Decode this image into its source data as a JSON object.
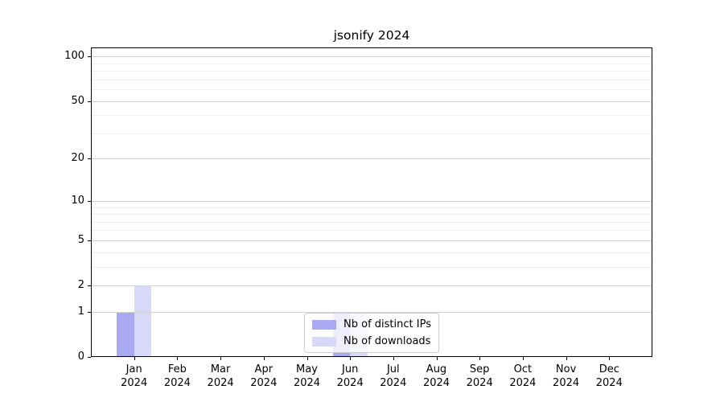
{
  "chart_data": {
    "type": "bar",
    "title": "jsonify 2024",
    "categories": [
      "Jan",
      "Feb",
      "Mar",
      "Apr",
      "May",
      "Jun",
      "Jul",
      "Aug",
      "Sep",
      "Oct",
      "Nov",
      "Dec"
    ],
    "category_year": "2024",
    "series": [
      {
        "name": "Nb of distinct IPs",
        "color": "#a9a9f2",
        "values": [
          1,
          0,
          0,
          0,
          0,
          1,
          0,
          0,
          0,
          0,
          0,
          0
        ]
      },
      {
        "name": "Nb of downloads",
        "color": "#d8d8f8",
        "values": [
          2,
          0,
          0,
          0,
          0,
          1,
          0,
          0,
          0,
          0,
          0,
          0
        ]
      }
    ],
    "y_axis": {
      "scale": "log1p",
      "major_ticks": [
        0,
        1,
        2,
        5,
        10,
        20,
        50,
        100
      ],
      "minor_ticks": [
        3,
        4,
        6,
        7,
        8,
        9,
        30,
        40,
        60,
        70,
        80,
        90
      ],
      "max": 115
    },
    "xlabel": "",
    "ylabel": "",
    "grid": true,
    "legend": {
      "position": "lower center"
    }
  },
  "colors": {
    "background": "#ffffff",
    "spine": "#000000",
    "major_grid": "#d2d2d2",
    "minor_grid": "#efefef",
    "text": "#000000"
  }
}
